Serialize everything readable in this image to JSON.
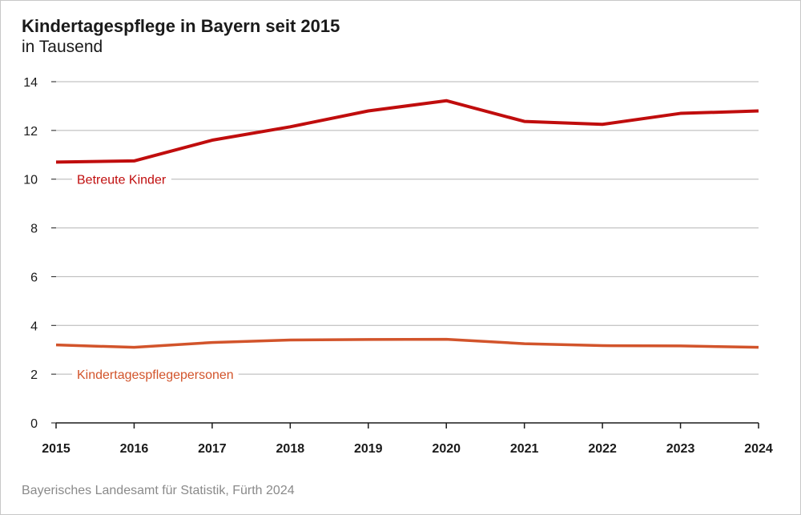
{
  "title": "Kindertagespflege in Bayern seit 2015",
  "subtitle": "in Tausend",
  "source": "Bayerisches Landesamt für Statistik, Fürth 2024",
  "chart_data": {
    "type": "line",
    "title": "Kindertagespflege in Bayern seit 2015",
    "subtitle": "in Tausend",
    "x": [
      "2015",
      "2016",
      "2017",
      "2018",
      "2019",
      "2020",
      "2021",
      "2022",
      "2023",
      "2024"
    ],
    "ylim": [
      0,
      14
    ],
    "yticks": [
      "0",
      "2",
      "4",
      "6",
      "8",
      "10",
      "12",
      "14"
    ],
    "grid": true,
    "series": [
      {
        "name": "Betreute Kinder",
        "color": "#c00d0d",
        "values": [
          10.7,
          10.75,
          11.6,
          12.15,
          12.8,
          13.22,
          12.37,
          12.25,
          12.7,
          12.8
        ]
      },
      {
        "name": "Kindertagespflegepersonen",
        "color": "#d2542b",
        "values": [
          3.2,
          3.1,
          3.3,
          3.4,
          3.42,
          3.43,
          3.25,
          3.17,
          3.16,
          3.1
        ]
      }
    ]
  }
}
